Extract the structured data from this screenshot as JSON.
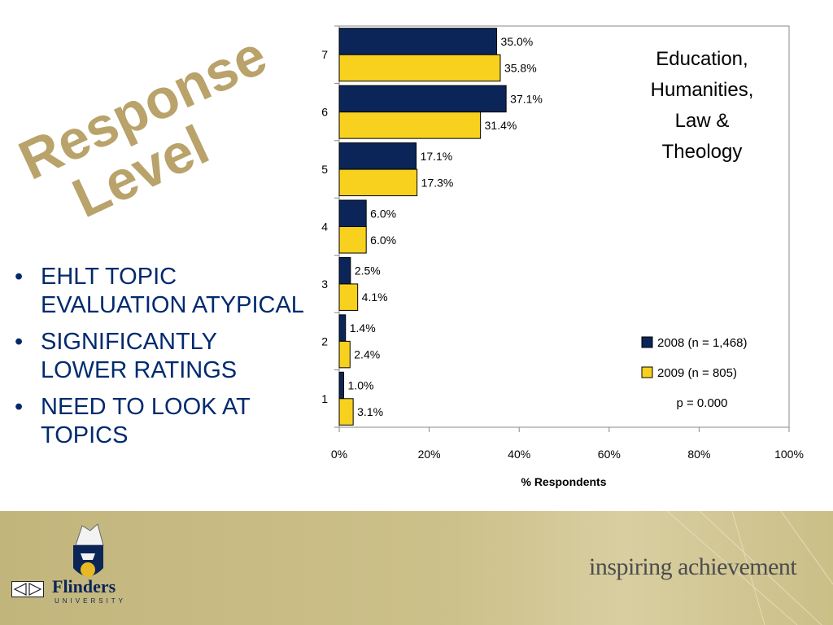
{
  "slide": {
    "side_title": [
      "Response",
      "Level"
    ],
    "bullets": [
      "EHLT TOPIC EVALUATION ATYPICAL",
      "SIGNIFICANTLY LOWER RATINGS",
      "NEED TO LOOK AT TOPICS"
    ],
    "colors": {
      "title_gold": "#b9a36a",
      "bullet_blue": "#002a6e",
      "footer_gold": "#c8bb84",
      "series_2008": "#0b2558",
      "series_2009": "#f7d11e"
    }
  },
  "chart_data": {
    "type": "bar",
    "orientation": "horizontal",
    "categories": [
      "1",
      "2",
      "3",
      "4",
      "5",
      "6",
      "7"
    ],
    "series": [
      {
        "name": "2008 (n = 1,468)",
        "color": "#0b2558",
        "values": [
          1.0,
          1.4,
          2.5,
          6.0,
          17.1,
          37.1,
          35.0
        ],
        "labels": [
          "1.0%",
          "1.4%",
          "2.5%",
          "6.0%",
          "17.1%",
          "37.1%",
          "35.0%"
        ]
      },
      {
        "name": "2009 (n = 805)",
        "color": "#f7d11e",
        "values": [
          3.1,
          2.4,
          4.1,
          6.0,
          17.3,
          31.4,
          35.8
        ],
        "labels": [
          "3.1%",
          "2.4%",
          "4.1%",
          "6.0%",
          "17.3%",
          "31.4%",
          "35.8%"
        ]
      }
    ],
    "title": [
      "Education,",
      "Humanities,",
      "Law &",
      "Theology"
    ],
    "xlabel": "% Respondents",
    "xlim": [
      0,
      100
    ],
    "xticks": [
      0,
      20,
      40,
      60,
      80,
      100
    ],
    "xtick_labels": [
      "0%",
      "20%",
      "40%",
      "60%",
      "80%",
      "100%"
    ],
    "annotation": "p = 0.000",
    "legend_position": "bottom-right",
    "grid": false
  },
  "footer": {
    "slogan": "inspiring achievement",
    "university": "Flinders",
    "university_sub": "UNIVERSITY"
  },
  "icons": {
    "crest": "university-crest-icon",
    "nav": "nav-arrows-icon"
  }
}
